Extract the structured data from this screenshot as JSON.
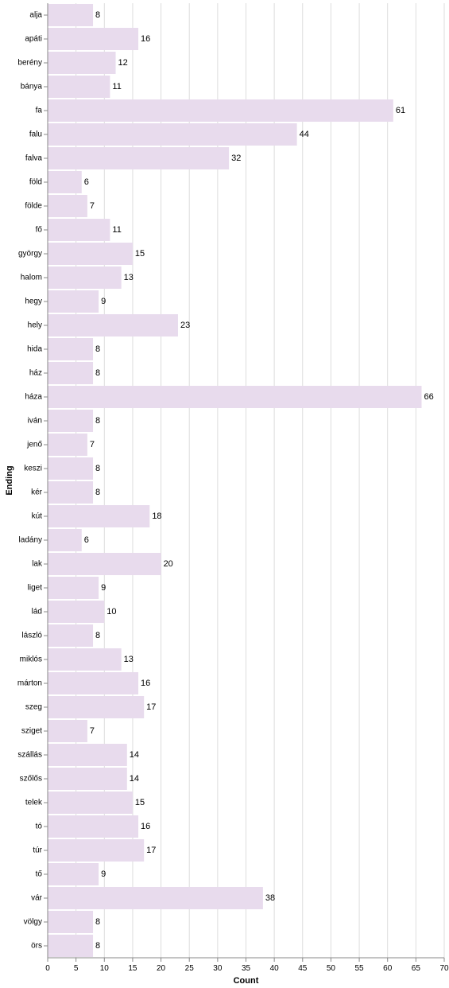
{
  "chart_data": {
    "type": "bar",
    "orientation": "horizontal",
    "xlabel": "Count",
    "ylabel": "Ending",
    "xlim": [
      0,
      70
    ],
    "xticks": [
      0,
      5,
      10,
      15,
      20,
      25,
      30,
      35,
      40,
      45,
      50,
      55,
      60,
      65,
      70
    ],
    "grid": true,
    "bar_color": "#e8dbed",
    "categories": [
      "alja",
      "apáti",
      "berény",
      "bánya",
      "fa",
      "falu",
      "falva",
      "föld",
      "földe",
      "fő",
      "györgy",
      "halom",
      "hegy",
      "hely",
      "hida",
      "ház",
      "háza",
      "iván",
      "jenő",
      "keszi",
      "kér",
      "kút",
      "ladány",
      "lak",
      "liget",
      "lád",
      "lászló",
      "miklós",
      "márton",
      "szeg",
      "sziget",
      "szállás",
      "szőlős",
      "telek",
      "tó",
      "túr",
      "tő",
      "vár",
      "völgy",
      "örs"
    ],
    "values": [
      8,
      16,
      12,
      11,
      61,
      44,
      32,
      6,
      7,
      11,
      15,
      13,
      9,
      23,
      8,
      8,
      66,
      8,
      7,
      8,
      8,
      18,
      6,
      20,
      9,
      10,
      8,
      13,
      16,
      17,
      7,
      14,
      14,
      15,
      16,
      17,
      9,
      38,
      8,
      8
    ]
  }
}
